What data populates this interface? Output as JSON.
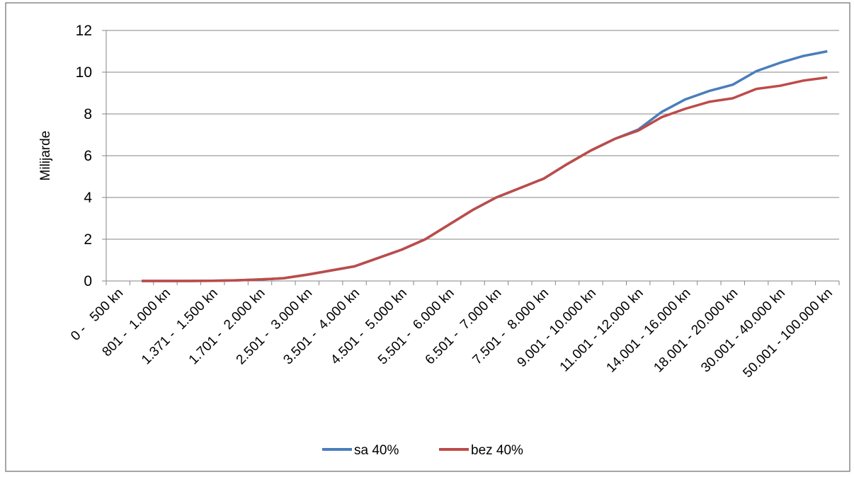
{
  "chart_data": {
    "type": "line",
    "y_label": "Milijarde",
    "categories": [
      "0 -   500 kn",
      null,
      "801 -  1.000 kn",
      null,
      "1.371 -  1.500 kn",
      null,
      "1.701 -  2.000 kn",
      null,
      "2.501 -  3.000 kn",
      null,
      "3.501 -  4.000 kn",
      null,
      "4.501 -  5.000 kn",
      null,
      "5.501 -  6.000 kn",
      null,
      "6.501 -  7.000 kn",
      null,
      "7.501 -  8.000 kn",
      null,
      "9.001 - 10.000 kn",
      null,
      "11.001 - 12.000 kn",
      null,
      "14.001 - 16.000 kn",
      null,
      "18.001 - 20.000 kn",
      null,
      "30.001 - 40.000 kn",
      null,
      "50.001 - 100.000 kn"
    ],
    "series": [
      {
        "name": "sa 40%",
        "color": "#4a7ebb",
        "values": [
          null,
          0,
          0,
          0,
          0.01,
          0.03,
          0.07,
          0.13,
          0.3,
          0.5,
          0.7,
          1.1,
          1.5,
          2.0,
          2.7,
          3.4,
          4.0,
          4.45,
          4.9,
          5.6,
          6.25,
          6.8,
          7.25,
          8.1,
          8.7,
          9.1,
          9.4,
          10.05,
          10.45,
          10.78,
          11.0
        ]
      },
      {
        "name": "bez 40%",
        "color": "#be4b48",
        "values": [
          null,
          0,
          0,
          0,
          0.01,
          0.03,
          0.07,
          0.13,
          0.3,
          0.5,
          0.7,
          1.1,
          1.5,
          2.0,
          2.7,
          3.4,
          4.0,
          4.45,
          4.9,
          5.6,
          6.25,
          6.8,
          7.2,
          7.85,
          8.25,
          8.58,
          8.75,
          9.2,
          9.35,
          9.6,
          9.75
        ]
      }
    ],
    "ylim": [
      0,
      12
    ],
    "yticks": [
      0,
      2,
      4,
      6,
      8,
      10,
      12
    ],
    "grid": true,
    "legend": "bottom"
  }
}
